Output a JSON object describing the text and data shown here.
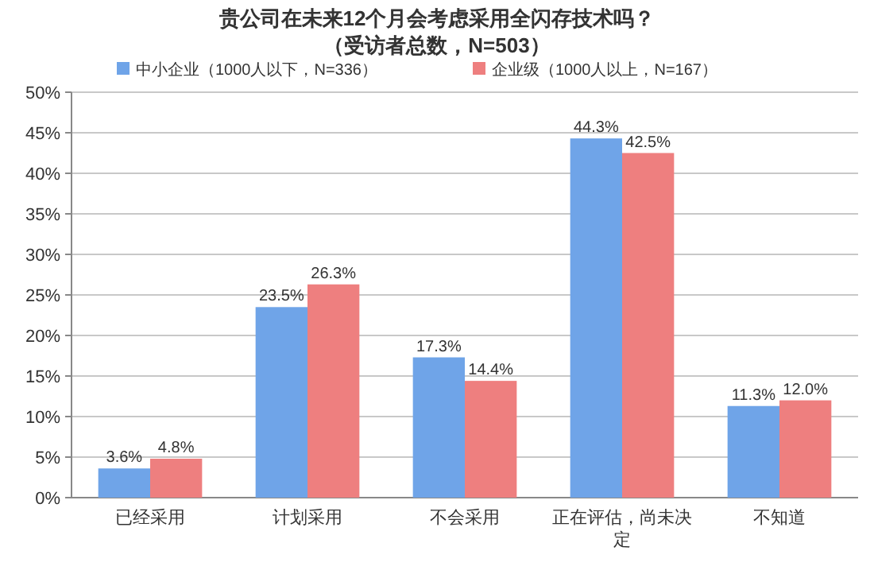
{
  "chart_data": {
    "type": "bar",
    "title": "贵公司在未来12个月会考虑采用全闪存技术吗？",
    "subtitle": "（受访者总数，N=503）",
    "categories": [
      "已经采用",
      "计划采用",
      "不会采用",
      "正在评估，尚未决定",
      "不知道"
    ],
    "series": [
      {
        "name": "中小企业（1000人以下，N=336）",
        "color": "#6fa4e8",
        "values": [
          3.6,
          23.5,
          17.3,
          44.3,
          11.3
        ],
        "value_labels": [
          "3.6%",
          "23.5%",
          "17.3%",
          "44.3%",
          "11.3%"
        ]
      },
      {
        "name": "企业级（1000人以上，N=167）",
        "color": "#ee7f7f",
        "values": [
          4.8,
          26.3,
          14.4,
          42.5,
          12.0
        ],
        "value_labels": [
          "4.8%",
          "26.3%",
          "14.4%",
          "42.5%",
          "12.0%"
        ]
      }
    ],
    "ylim": [
      0,
      50
    ],
    "yticks": [
      {
        "value": 0,
        "label": "0%"
      },
      {
        "value": 5,
        "label": "5%"
      },
      {
        "value": 10,
        "label": "10%"
      },
      {
        "value": 15,
        "label": "15%"
      },
      {
        "value": 20,
        "label": "20%"
      },
      {
        "value": 25,
        "label": "25%"
      },
      {
        "value": 30,
        "label": "30%"
      },
      {
        "value": 35,
        "label": "35%"
      },
      {
        "value": 40,
        "label": "40%"
      },
      {
        "value": 45,
        "label": "45%"
      },
      {
        "value": 50,
        "label": "50%"
      }
    ],
    "grid": "y",
    "legend": "top"
  }
}
